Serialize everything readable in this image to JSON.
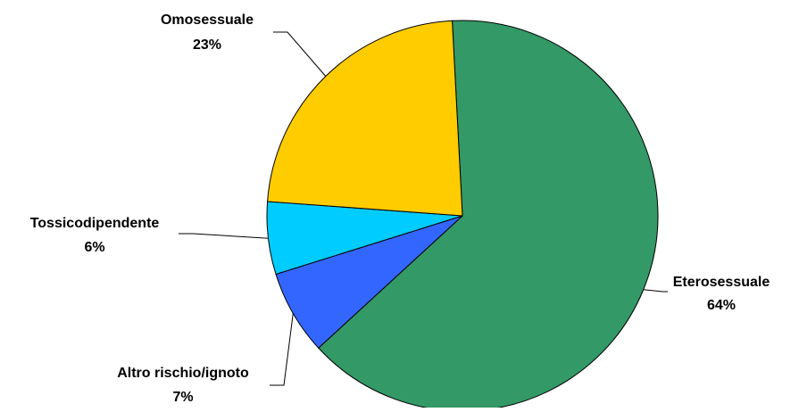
{
  "chart_data": {
    "type": "pie",
    "categories": [
      "Eterosessuale",
      "Omosessuale",
      "Tossicodipendente",
      "Altro rischio/ignoto"
    ],
    "values": [
      64,
      23,
      6,
      7
    ],
    "value_labels": [
      "64%",
      "23%",
      "6%",
      "7%"
    ],
    "colors": [
      "#339966",
      "#FFCC00",
      "#00CCFF",
      "#3366FF"
    ],
    "start_angle_deg": 93,
    "direction": "clockwise",
    "legend": "none"
  }
}
